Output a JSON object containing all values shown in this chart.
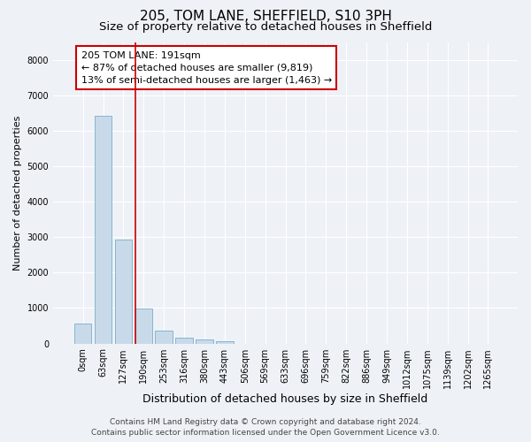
{
  "title": "205, TOM LANE, SHEFFIELD, S10 3PH",
  "subtitle": "Size of property relative to detached houses in Sheffield",
  "xlabel": "Distribution of detached houses by size in Sheffield",
  "ylabel": "Number of detached properties",
  "footer_line1": "Contains HM Land Registry data © Crown copyright and database right 2024.",
  "footer_line2": "Contains public sector information licensed under the Open Government Licence v3.0.",
  "annotation_title": "205 TOM LANE: 191sqm",
  "annotation_line2": "← 87% of detached houses are smaller (9,819)",
  "annotation_line3": "13% of semi-detached houses are larger (1,463) →",
  "bar_labels": [
    "0sqm",
    "63sqm",
    "127sqm",
    "190sqm",
    "253sqm",
    "316sqm",
    "380sqm",
    "443sqm",
    "506sqm",
    "569sqm",
    "633sqm",
    "696sqm",
    "759sqm",
    "822sqm",
    "886sqm",
    "949sqm",
    "1012sqm",
    "1075sqm",
    "1139sqm",
    "1202sqm",
    "1265sqm"
  ],
  "bar_values": [
    560,
    6420,
    2920,
    980,
    360,
    155,
    105,
    55,
    0,
    0,
    0,
    0,
    0,
    0,
    0,
    0,
    0,
    0,
    0,
    0,
    0
  ],
  "bar_color": "#c8daea",
  "bar_edge_color": "#7aaec8",
  "vline_color": "#cc0000",
  "annotation_box_color": "#cc0000",
  "ylim": [
    0,
    8500
  ],
  "yticks": [
    0,
    1000,
    2000,
    3000,
    4000,
    5000,
    6000,
    7000,
    8000
  ],
  "background_color": "#eef2f7",
  "plot_bg_color": "#eef2f7",
  "grid_color": "#ffffff",
  "title_fontsize": 11,
  "subtitle_fontsize": 9.5,
  "xlabel_fontsize": 9,
  "ylabel_fontsize": 8,
  "tick_fontsize": 7,
  "annotation_fontsize": 8,
  "footer_fontsize": 6.5
}
